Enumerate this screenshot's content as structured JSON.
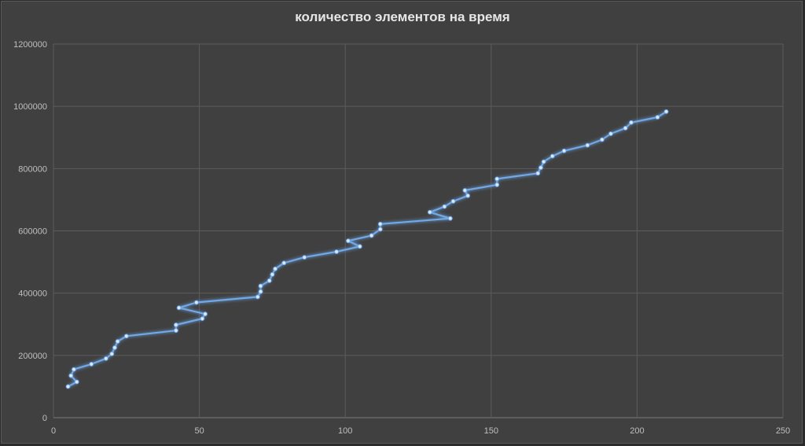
{
  "chart_data": {
    "type": "line",
    "title": "количество элементов на время",
    "xlabel": "",
    "ylabel": "",
    "xlim": [
      0,
      250
    ],
    "ylim": [
      0,
      1200000
    ],
    "x_ticks": [
      "0",
      "50",
      "100",
      "150",
      "200",
      "250"
    ],
    "y_ticks": [
      "0",
      "200000",
      "400000",
      "600000",
      "800000",
      "1000000",
      "1200000"
    ],
    "grid": true,
    "legend": "none",
    "line_color": "#6fa8e8",
    "series": [
      {
        "points": [
          [
            5,
            100000
          ],
          [
            8,
            115000
          ],
          [
            6,
            135000
          ],
          [
            7,
            155000
          ],
          [
            13,
            172000
          ],
          [
            18,
            190000
          ],
          [
            20,
            205000
          ],
          [
            21,
            225000
          ],
          [
            22,
            245000
          ],
          [
            25,
            262000
          ],
          [
            42,
            280000
          ],
          [
            42,
            298000
          ],
          [
            51,
            318000
          ],
          [
            52,
            333000
          ],
          [
            43,
            353000
          ],
          [
            49,
            370000
          ],
          [
            70,
            388000
          ],
          [
            71,
            405000
          ],
          [
            71,
            423000
          ],
          [
            74,
            440000
          ],
          [
            75,
            460000
          ],
          [
            76,
            478000
          ],
          [
            79,
            497000
          ],
          [
            86,
            515000
          ],
          [
            97,
            533000
          ],
          [
            105,
            550000
          ],
          [
            101,
            568000
          ],
          [
            109,
            585000
          ],
          [
            112,
            605000
          ],
          [
            112,
            622000
          ],
          [
            136,
            640000
          ],
          [
            129,
            660000
          ],
          [
            134,
            678000
          ],
          [
            137,
            695000
          ],
          [
            142,
            713000
          ],
          [
            141,
            730000
          ],
          [
            152,
            748000
          ],
          [
            152,
            767000
          ],
          [
            166,
            785000
          ],
          [
            167,
            803000
          ],
          [
            168,
            822000
          ],
          [
            171,
            840000
          ],
          [
            175,
            857000
          ],
          [
            183,
            875000
          ],
          [
            188,
            893000
          ],
          [
            191,
            912000
          ],
          [
            196,
            930000
          ],
          [
            198,
            948000
          ],
          [
            207,
            965000
          ],
          [
            210,
            983000
          ]
        ]
      }
    ]
  }
}
